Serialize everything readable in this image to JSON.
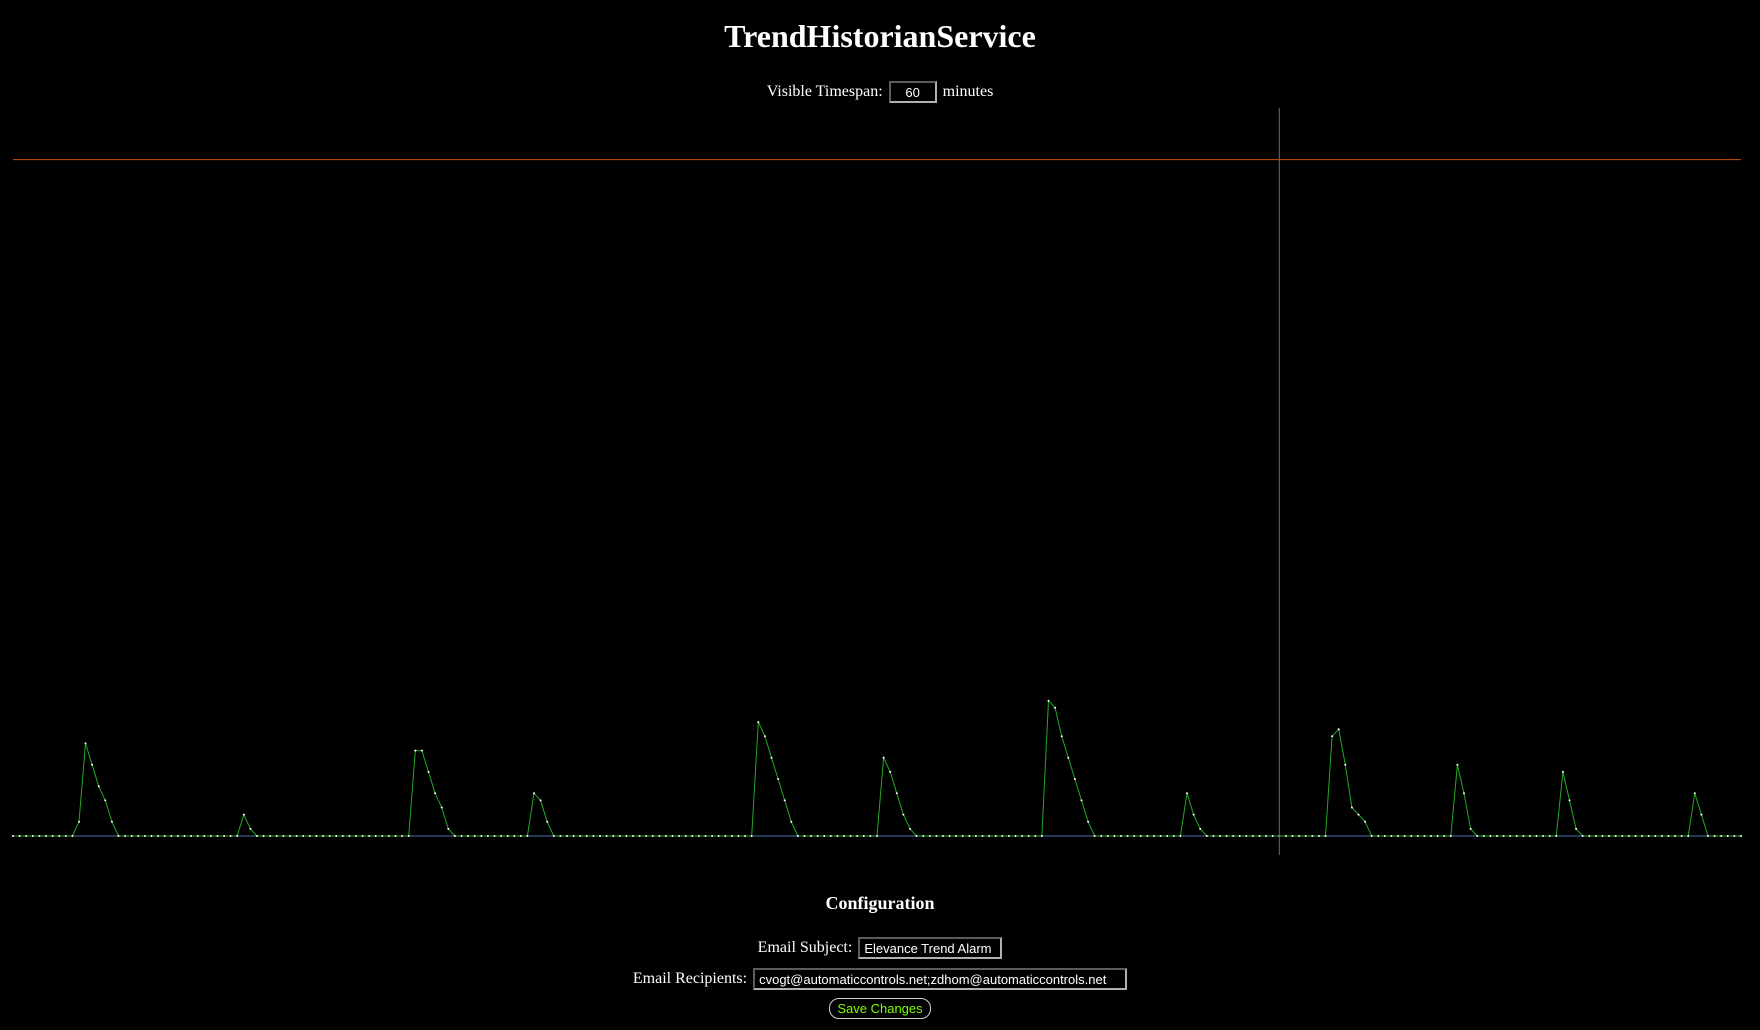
{
  "page": {
    "title": "TrendHistorianService"
  },
  "timespan": {
    "label": "Visible Timespan:",
    "value": "60",
    "unit": "minutes"
  },
  "colors": {
    "background": "#000000",
    "series_line": "#22aa22",
    "series_point": "#ffffff",
    "threshold_line": "#cc5500",
    "baseline": "#4a6fa5",
    "cursor_line": "#4a6fa5",
    "button_text": "#7CFC00"
  },
  "chart_data": {
    "type": "line",
    "grid": false,
    "legend": "none",
    "ylim": [
      0,
      100
    ],
    "threshold": 95,
    "cursor_index": 192,
    "series": [
      {
        "values": [
          0,
          0,
          0,
          0,
          0,
          0,
          0,
          0,
          0,
          0,
          2,
          13,
          10,
          7,
          5,
          2,
          0,
          0,
          0,
          0,
          0,
          0,
          0,
          0,
          0,
          0,
          0,
          0,
          0,
          0,
          0,
          0,
          0,
          0,
          0,
          3,
          1,
          0,
          0,
          0,
          0,
          0,
          0,
          0,
          0,
          0,
          0,
          0,
          0,
          0,
          0,
          0,
          0,
          0,
          0,
          0,
          0,
          0,
          0,
          0,
          0,
          12,
          12,
          9,
          6,
          4,
          1,
          0,
          0,
          0,
          0,
          0,
          0,
          0,
          0,
          0,
          0,
          0,
          0,
          6,
          5,
          2,
          0,
          0,
          0,
          0,
          0,
          0,
          0,
          0,
          0,
          0,
          0,
          0,
          0,
          0,
          0,
          0,
          0,
          0,
          0,
          0,
          0,
          0,
          0,
          0,
          0,
          0,
          0,
          0,
          0,
          0,
          0,
          16,
          14,
          11,
          8,
          5,
          2,
          0,
          0,
          0,
          0,
          0,
          0,
          0,
          0,
          0,
          0,
          0,
          0,
          0,
          11,
          9,
          6,
          3,
          1,
          0,
          0,
          0,
          0,
          0,
          0,
          0,
          0,
          0,
          0,
          0,
          0,
          0,
          0,
          0,
          0,
          0,
          0,
          0,
          0,
          19,
          18,
          14,
          11,
          8,
          5,
          2,
          0,
          0,
          0,
          0,
          0,
          0,
          0,
          0,
          0,
          0,
          0,
          0,
          0,
          0,
          6,
          3,
          1,
          0,
          0,
          0,
          0,
          0,
          0,
          0,
          0,
          0,
          0,
          0,
          0,
          0,
          0,
          0,
          0,
          0,
          0,
          0,
          14,
          15,
          10,
          4,
          3,
          2,
          0,
          0,
          0,
          0,
          0,
          0,
          0,
          0,
          0,
          0,
          0,
          0,
          0,
          10,
          6,
          1,
          0,
          0,
          0,
          0,
          0,
          0,
          0,
          0,
          0,
          0,
          0,
          0,
          0,
          9,
          5,
          1,
          0,
          0,
          0,
          0,
          0,
          0,
          0,
          0,
          0,
          0,
          0,
          0,
          0,
          0,
          0,
          0,
          0,
          6,
          3,
          0,
          0,
          0,
          0,
          0,
          0
        ]
      }
    ]
  },
  "config": {
    "title": "Configuration",
    "email_subject_label": "Email Subject:",
    "email_subject_value": "Elevance Trend Alarm",
    "email_recipients_label": "Email Recipients:",
    "email_recipients_value": "cvogt@automaticcontrols.net;zdhom@automaticcontrols.net",
    "save_label": "Save Changes"
  }
}
